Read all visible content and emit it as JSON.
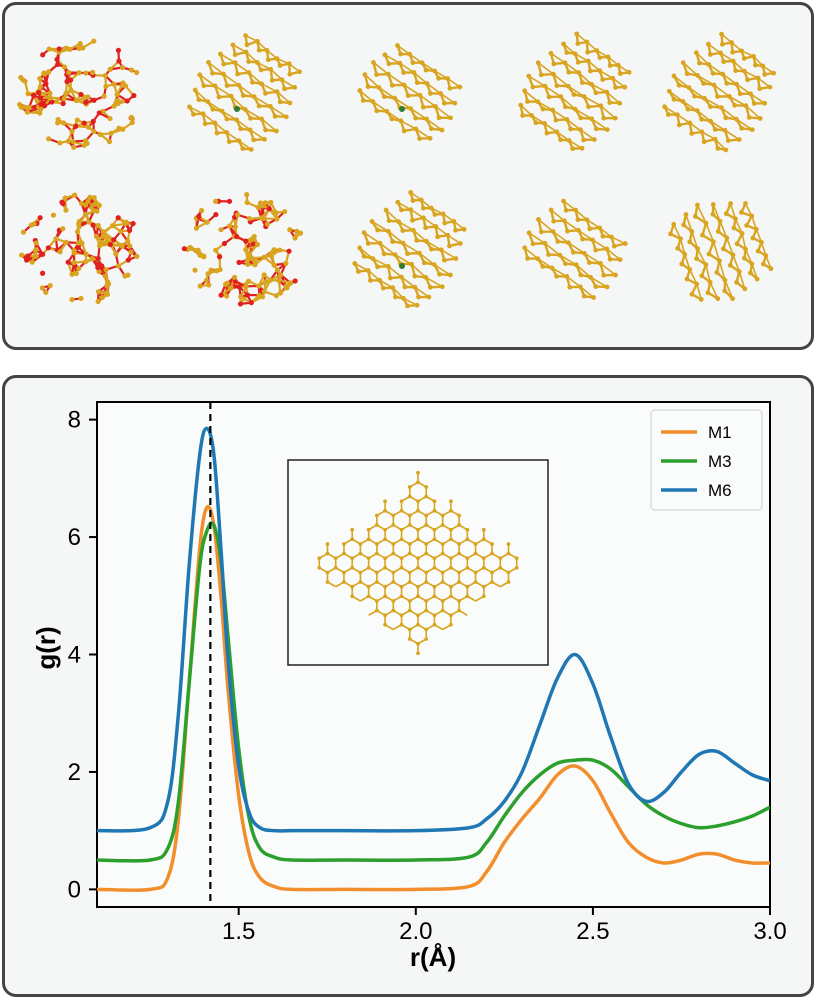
{
  "figure": {
    "top_panel": {
      "snapshot_rows": 2,
      "snapshot_columns": 5,
      "colors": {
        "carbon": "#d9a520",
        "oxygen": "#e02020",
        "other": "#2e7d32"
      }
    }
  },
  "chart_data": {
    "type": "line",
    "title": "",
    "xlabel": "r(Å)",
    "ylabel": "g(r)",
    "xlim": [
      1.1,
      3.0
    ],
    "ylim": [
      -0.3,
      8.3
    ],
    "xticks": [
      1.5,
      2.0,
      2.5,
      3.0
    ],
    "xtick_labels": [
      "1.5",
      "2.0",
      "2.5",
      "3.0"
    ],
    "yticks": [
      0,
      2,
      4,
      6,
      8
    ],
    "ytick_labels": [
      "0",
      "2",
      "4",
      "6",
      "8"
    ],
    "grid": false,
    "legend_position": "top-right",
    "reference_line": {
      "x": 1.42,
      "style": "dashed"
    },
    "inset": "graphene sheet snapshot",
    "series": [
      {
        "name": "M1",
        "color": "#f28e2b",
        "x": [
          1.1,
          1.25,
          1.3,
          1.33,
          1.36,
          1.39,
          1.41,
          1.43,
          1.45,
          1.47,
          1.5,
          1.53,
          1.56,
          1.6,
          1.65,
          1.8,
          2.0,
          2.15,
          2.2,
          2.25,
          2.3,
          2.35,
          2.4,
          2.45,
          2.5,
          2.55,
          2.6,
          2.65,
          2.7,
          2.75,
          2.8,
          2.85,
          2.9,
          2.95,
          3.0
        ],
        "y": [
          0.0,
          0.0,
          0.2,
          1.2,
          3.5,
          5.8,
          6.5,
          6.2,
          5.0,
          3.4,
          1.6,
          0.6,
          0.2,
          0.05,
          0.0,
          0.0,
          0.0,
          0.05,
          0.3,
          0.8,
          1.2,
          1.55,
          1.95,
          2.1,
          1.85,
          1.3,
          0.8,
          0.55,
          0.45,
          0.5,
          0.6,
          0.6,
          0.5,
          0.45,
          0.45
        ]
      },
      {
        "name": "M3",
        "color": "#2ca02c",
        "x": [
          1.1,
          1.25,
          1.3,
          1.33,
          1.36,
          1.39,
          1.41,
          1.43,
          1.45,
          1.47,
          1.5,
          1.53,
          1.56,
          1.6,
          1.65,
          1.8,
          2.0,
          2.15,
          2.2,
          2.25,
          2.3,
          2.35,
          2.4,
          2.45,
          2.5,
          2.55,
          2.6,
          2.65,
          2.7,
          2.75,
          2.8,
          2.85,
          2.9,
          2.95,
          3.0
        ],
        "y": [
          0.5,
          0.5,
          0.7,
          1.5,
          3.5,
          5.5,
          6.1,
          6.2,
          5.6,
          4.3,
          2.4,
          1.2,
          0.7,
          0.55,
          0.5,
          0.5,
          0.5,
          0.55,
          0.8,
          1.25,
          1.65,
          1.95,
          2.15,
          2.2,
          2.2,
          2.05,
          1.75,
          1.45,
          1.25,
          1.12,
          1.05,
          1.08,
          1.15,
          1.25,
          1.4
        ]
      },
      {
        "name": "M6",
        "color": "#1f77b4",
        "x": [
          1.1,
          1.25,
          1.3,
          1.33,
          1.36,
          1.39,
          1.41,
          1.43,
          1.45,
          1.47,
          1.5,
          1.53,
          1.56,
          1.6,
          1.65,
          1.8,
          2.0,
          2.15,
          2.2,
          2.25,
          2.3,
          2.35,
          2.4,
          2.45,
          2.5,
          2.55,
          2.6,
          2.65,
          2.7,
          2.75,
          2.8,
          2.85,
          2.9,
          2.95,
          3.0
        ],
        "y": [
          1.0,
          1.05,
          1.5,
          3.0,
          5.5,
          7.4,
          7.85,
          7.4,
          5.8,
          3.9,
          2.1,
          1.3,
          1.05,
          1.0,
          1.0,
          1.0,
          1.0,
          1.05,
          1.2,
          1.5,
          2.0,
          2.8,
          3.6,
          4.0,
          3.5,
          2.6,
          1.8,
          1.5,
          1.65,
          2.0,
          2.3,
          2.35,
          2.15,
          1.95,
          1.85
        ]
      }
    ]
  }
}
